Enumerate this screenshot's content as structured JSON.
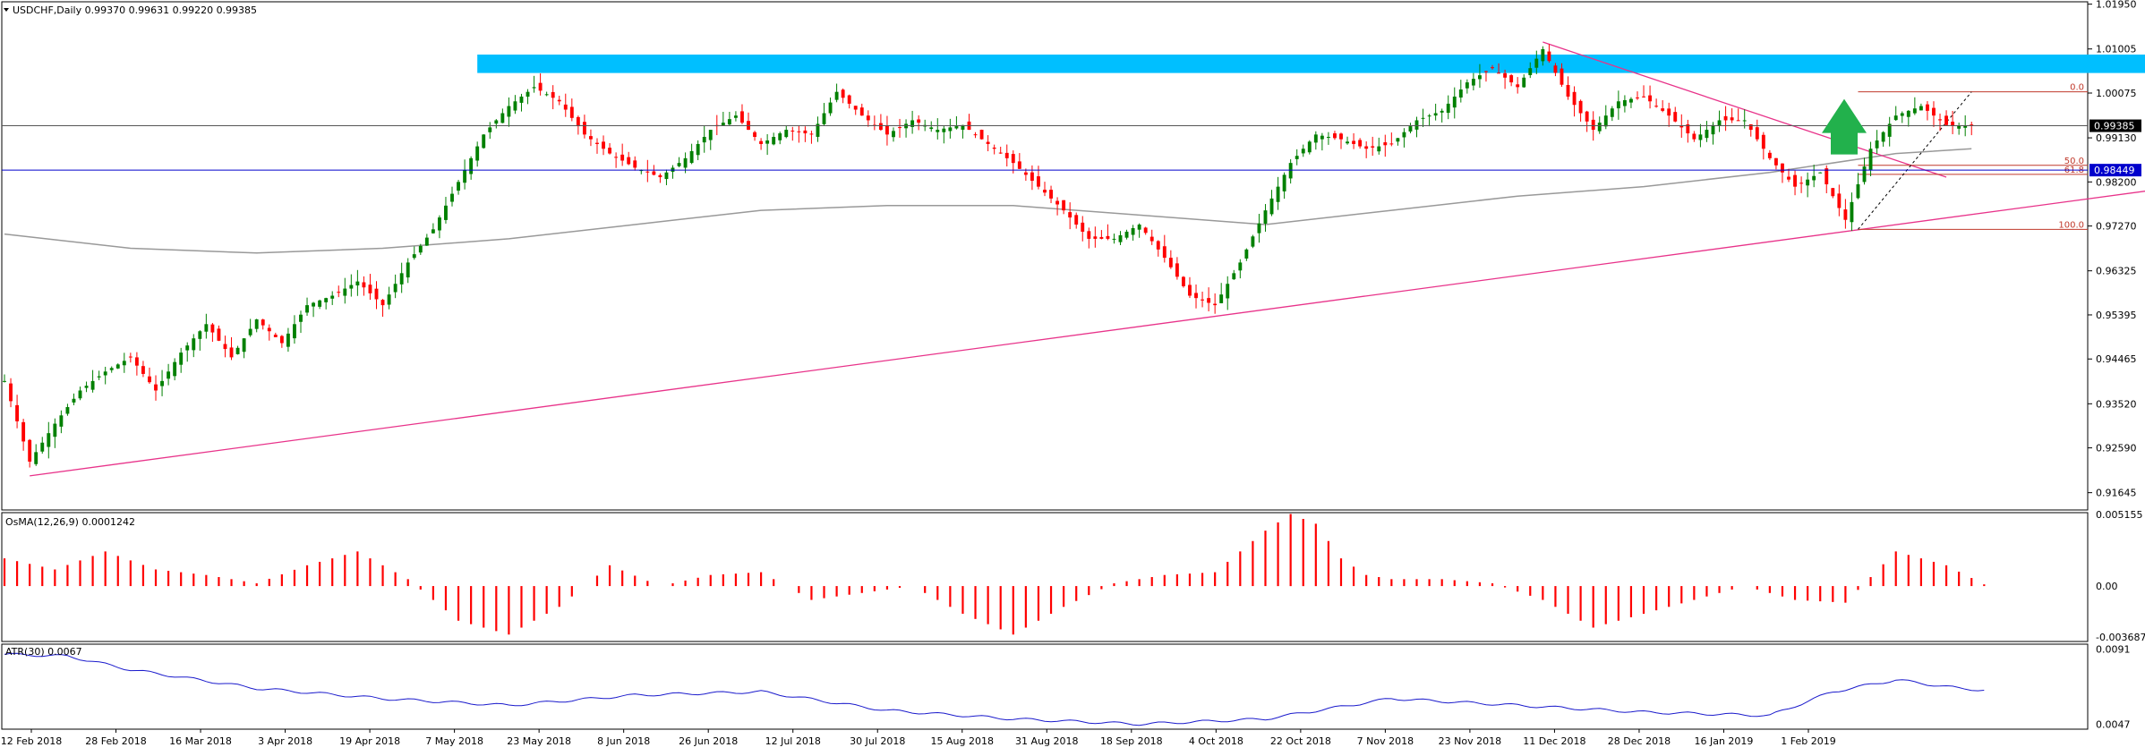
{
  "header": {
    "symbol_line": "USDCHF,Daily  0.99370 0.99631 0.99220 0.99385"
  },
  "colors": {
    "bull": "#008000",
    "bear": "#ff0000",
    "ma": "#999999",
    "trendline": "#e8338a",
    "resistance_zone": "#00bfff",
    "support_line": "#0000cc",
    "arrow": "#22b14c",
    "atr": "#1a1acc",
    "osma": "#ff0000"
  },
  "chart_data": [
    {
      "type": "candlestick",
      "title": "USDCHF,Daily",
      "ohlc_last": {
        "open": 0.9937,
        "high": 0.99631,
        "low": 0.9922,
        "close": 0.99385
      },
      "ylim": [
        0.9128,
        1.02
      ],
      "y_ticks": [
        "1.01950",
        "1.01005",
        "1.00075",
        "0.99130",
        "0.98200",
        "0.97270",
        "0.96325",
        "0.95395",
        "0.94465",
        "0.93520",
        "0.92590",
        "0.91645"
      ],
      "x_labels": [
        "12 Feb 2018",
        "28 Feb 2018",
        "16 Mar 2018",
        "3 Apr 2018",
        "19 Apr 2018",
        "7 May 2018",
        "23 May 2018",
        "8 Jun 2018",
        "26 Jun 2018",
        "12 Jul 2018",
        "30 Jul 2018",
        "15 Aug 2018",
        "31 Aug 2018",
        "18 Sep 2018",
        "4 Oct 2018",
        "22 Oct 2018",
        "7 Nov 2018",
        "23 Nov 2018",
        "11 Dec 2018",
        "28 Dec 2018",
        "16 Jan 2019",
        "1 Feb 2019"
      ],
      "price_labels": [
        {
          "text": "0.99385",
          "value": 0.99385,
          "style": "current"
        },
        {
          "text": "0.98449",
          "value": 0.98449,
          "style": "support"
        }
      ],
      "close_path": [
        [
          0,
          0.94
        ],
        [
          4,
          0.923
        ],
        [
          8,
          0.931
        ],
        [
          12,
          0.938
        ],
        [
          16,
          0.942
        ],
        [
          20,
          0.945
        ],
        [
          24,
          0.938
        ],
        [
          28,
          0.946
        ],
        [
          32,
          0.952
        ],
        [
          36,
          0.945
        ],
        [
          40,
          0.953
        ],
        [
          44,
          0.948
        ],
        [
          48,
          0.956
        ],
        [
          52,
          0.958
        ],
        [
          56,
          0.961
        ],
        [
          60,
          0.956
        ],
        [
          64,
          0.965
        ],
        [
          68,
          0.972
        ],
        [
          72,
          0.982
        ],
        [
          76,
          0.992
        ],
        [
          80,
          0.998
        ],
        [
          84,
          1.002
        ],
        [
          88,
          0.999
        ],
        [
          92,
          0.992
        ],
        [
          96,
          0.988
        ],
        [
          100,
          0.985
        ],
        [
          104,
          0.983
        ],
        [
          108,
          0.987
        ],
        [
          112,
          0.993
        ],
        [
          116,
          0.996
        ],
        [
          120,
          0.99
        ],
        [
          124,
          0.993
        ],
        [
          128,
          0.992
        ],
        [
          132,
          1.001
        ],
        [
          136,
          0.996
        ],
        [
          140,
          0.992
        ],
        [
          144,
          0.995
        ],
        [
          148,
          0.993
        ],
        [
          152,
          0.994
        ],
        [
          156,
          0.99
        ],
        [
          160,
          0.986
        ],
        [
          164,
          0.981
        ],
        [
          168,
          0.976
        ],
        [
          172,
          0.97
        ],
        [
          176,
          0.97
        ],
        [
          180,
          0.973
        ],
        [
          184,
          0.966
        ],
        [
          188,
          0.958
        ],
        [
          192,
          0.956
        ],
        [
          196,
          0.965
        ],
        [
          200,
          0.976
        ],
        [
          204,
          0.986
        ],
        [
          208,
          0.992
        ],
        [
          212,
          0.991
        ],
        [
          216,
          0.989
        ],
        [
          220,
          0.99
        ],
        [
          224,
          0.995
        ],
        [
          228,
          0.997
        ],
        [
          232,
          1.003
        ],
        [
          236,
          1.006
        ],
        [
          240,
          1.002
        ],
        [
          244,
          1.01
        ],
        [
          248,
          1.0
        ],
        [
          252,
          0.993
        ],
        [
          256,
          0.999
        ],
        [
          260,
          1.0
        ],
        [
          264,
          0.996
        ],
        [
          268,
          0.991
        ],
        [
          272,
          0.995
        ],
        [
          276,
          0.995
        ],
        [
          280,
          0.987
        ],
        [
          284,
          0.981
        ],
        [
          288,
          0.984
        ],
        [
          292,
          0.974
        ],
        [
          296,
          0.989
        ],
        [
          300,
          0.996
        ],
        [
          304,
          0.998
        ],
        [
          308,
          0.994
        ],
        [
          312,
          0.9938
        ]
      ],
      "ma_path": [
        [
          0,
          0.971
        ],
        [
          20,
          0.968
        ],
        [
          40,
          0.967
        ],
        [
          60,
          0.968
        ],
        [
          80,
          0.97
        ],
        [
          100,
          0.973
        ],
        [
          120,
          0.976
        ],
        [
          140,
          0.977
        ],
        [
          160,
          0.977
        ],
        [
          180,
          0.975
        ],
        [
          200,
          0.973
        ],
        [
          220,
          0.976
        ],
        [
          240,
          0.979
        ],
        [
          260,
          0.981
        ],
        [
          280,
          0.984
        ],
        [
          300,
          0.988
        ],
        [
          312,
          0.989
        ]
      ],
      "resistance_zone": {
        "from_bar": 75,
        "to_bar": 343,
        "high": 1.01,
        "low": 1.008
      },
      "support_level": 0.98449,
      "trendlines": [
        {
          "from": [
            4,
            0.92
          ],
          "to": [
            356,
            0.983
          ]
        },
        {
          "from": [
            244,
            1.0115
          ],
          "to": [
            308,
            0.983
          ]
        }
      ],
      "fibonacci": {
        "from_bar": 294,
        "to_bar": 360,
        "swing_low": 0.972,
        "swing_high": 1.001,
        "levels": [
          {
            "label": "0.0",
            "value": 1.001
          },
          {
            "label": "50.0",
            "value": 0.9855
          },
          {
            "label": "61.8",
            "value": 0.9836
          },
          {
            "label": "100.0",
            "value": 0.972
          }
        ]
      },
      "annotations": [
        "up-arrow"
      ]
    },
    {
      "type": "bar",
      "title": "OsMA(12,26,9) 0.0001242",
      "ylim": [
        -0.004,
        0.0053
      ],
      "y_ticks": [
        "0.005155",
        "0.00",
        "-0.003687"
      ],
      "x_path": [
        0,
        8,
        16,
        24,
        32,
        40,
        48,
        56,
        64,
        72,
        80,
        88,
        96,
        104,
        112,
        120,
        128,
        136,
        144,
        152,
        160,
        168,
        176,
        184,
        192,
        200,
        204,
        208,
        212,
        216,
        220,
        228,
        236,
        244,
        252,
        260,
        268,
        276,
        284,
        292,
        300,
        308,
        314
      ],
      "y_path": [
        0.002,
        0.0012,
        0.0025,
        0.0012,
        0.0008,
        0.0002,
        0.0015,
        0.0025,
        0.0005,
        -0.0025,
        -0.0035,
        -0.0015,
        0.0015,
        0.0,
        0.0008,
        0.001,
        -0.001,
        -0.0005,
        0.0,
        -0.002,
        -0.0035,
        -0.0015,
        0.0002,
        0.0008,
        0.001,
        0.004,
        0.0052,
        0.0045,
        0.002,
        0.0008,
        0.0005,
        0.0005,
        0.0002,
        -0.001,
        -0.003,
        -0.002,
        -0.001,
        0.0,
        -0.001,
        -0.0012,
        0.0025,
        0.0015,
        0.0001242
      ]
    },
    {
      "type": "line",
      "title": "ATR(30) 0.0067",
      "ylim": [
        0.0044,
        0.0094
      ],
      "y_ticks": [
        "0.0091",
        "0.0047"
      ],
      "x_path": [
        0,
        10,
        20,
        40,
        60,
        80,
        100,
        120,
        140,
        160,
        180,
        200,
        220,
        240,
        260,
        280,
        290,
        300,
        310,
        314
      ],
      "y_path": [
        0.0088,
        0.0087,
        0.0079,
        0.0068,
        0.0062,
        0.0058,
        0.0064,
        0.0066,
        0.0055,
        0.005,
        0.0047,
        0.005,
        0.0062,
        0.0058,
        0.0054,
        0.0052,
        0.0066,
        0.0073,
        0.0068,
        0.0067
      ]
    }
  ]
}
